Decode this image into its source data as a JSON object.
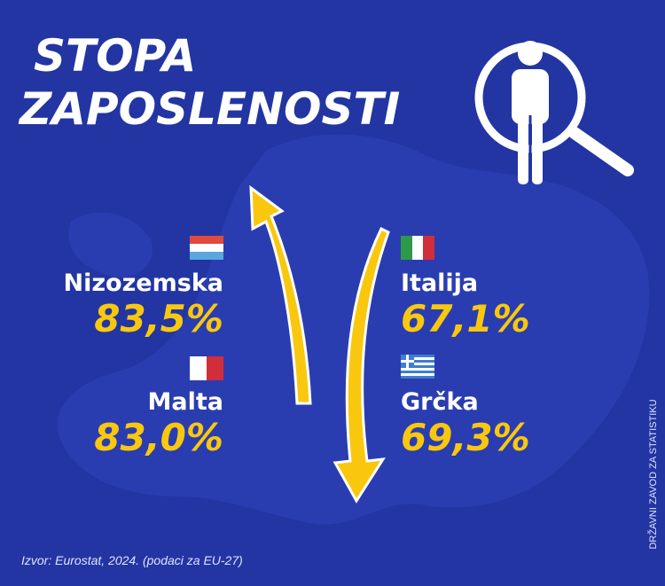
{
  "header": {
    "title_lines": [
      "STOPA",
      "ZAPOSLENOSTI"
    ]
  },
  "items": [
    {
      "country": "Nizozemska",
      "rate": "83,5%"
    },
    {
      "country": "Malta",
      "rate": "83,0%"
    },
    {
      "country": "Italija",
      "rate": "67,1%"
    },
    {
      "country": "Grčka",
      "rate": "69,3%"
    }
  ],
  "source": "Izvor: Eurostat, 2024. (podaci za EU-27)",
  "credit": "DRŽAVNI ZAVOD ZA STATISTIKU"
}
